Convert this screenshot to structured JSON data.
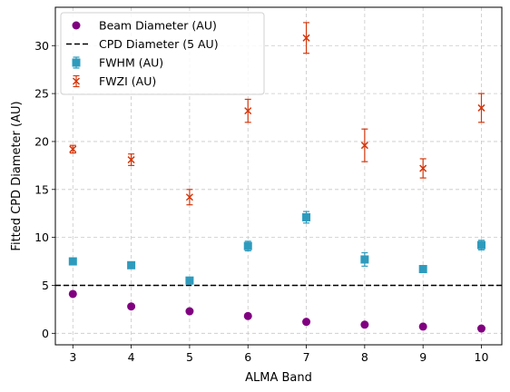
{
  "chart_data": {
    "type": "scatter",
    "xlabel": "ALMA Band",
    "ylabel": "Fitted CPD Diameter (AU)",
    "xlim": [
      2.7,
      10.35
    ],
    "ylim": [
      -1.2,
      34
    ],
    "x_ticks": [
      3,
      4,
      5,
      6,
      7,
      8,
      9,
      10
    ],
    "y_ticks": [
      0,
      5,
      10,
      15,
      20,
      25,
      30
    ],
    "grid": true,
    "legend_position": "top-left",
    "x": [
      3,
      4,
      5,
      6,
      7,
      8,
      9,
      10
    ],
    "series": [
      {
        "name": "Beam Diameter (AU)",
        "marker": "circle",
        "color": "#800080",
        "values": [
          4.1,
          2.8,
          2.3,
          1.8,
          1.2,
          0.9,
          0.7,
          0.5
        ]
      },
      {
        "name": "FWHM (AU)",
        "marker": "square",
        "color": "#2e9bbd",
        "values": [
          7.5,
          7.1,
          5.5,
          9.1,
          12.1,
          7.7,
          6.7,
          9.2
        ],
        "errors": [
          0.3,
          0.3,
          0.3,
          0.5,
          0.6,
          0.7,
          0.3,
          0.5
        ]
      },
      {
        "name": "FWZI (AU)",
        "marker": "x",
        "color": "#d4380d",
        "values": [
          19.2,
          18.1,
          14.2,
          23.2,
          30.8,
          19.6,
          17.2,
          23.5
        ],
        "errors": [
          0.4,
          0.6,
          0.8,
          1.2,
          1.6,
          1.7,
          1.0,
          1.5
        ]
      }
    ],
    "reference_line": {
      "name": "CPD Diameter (5 AU)",
      "y": 5,
      "style": "dashed",
      "color": "#000000"
    }
  }
}
